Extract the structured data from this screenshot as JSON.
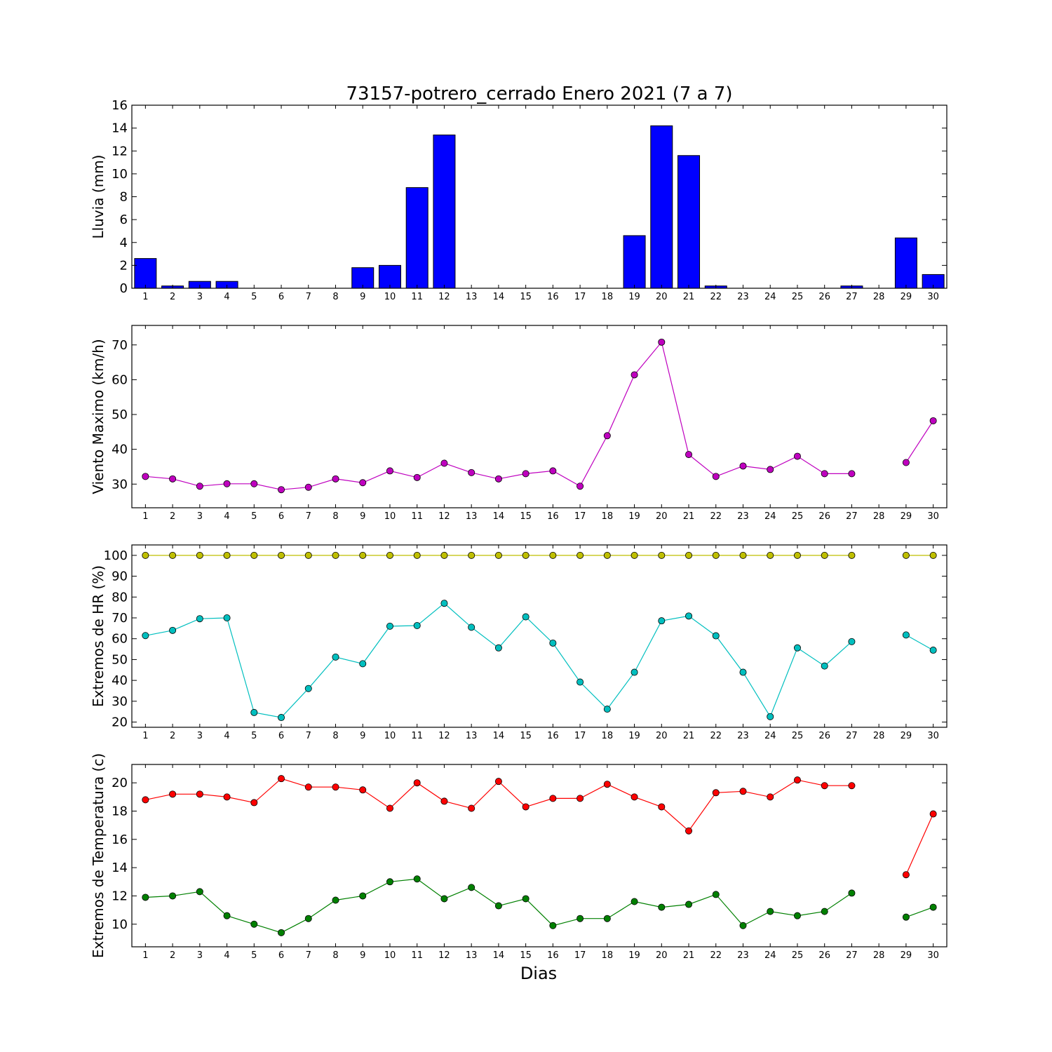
{
  "chart_data": [
    {
      "type": "bar",
      "title": "73157-potrero_cerrado Enero 2021  (7 a 7)",
      "ylabel": "Lluvia (mm)",
      "xlabel": "",
      "ylim": [
        0,
        16
      ],
      "yticks": [
        0,
        2,
        4,
        6,
        8,
        10,
        12,
        14,
        16
      ],
      "x": [
        1,
        2,
        3,
        4,
        5,
        6,
        7,
        8,
        9,
        10,
        11,
        12,
        13,
        14,
        15,
        16,
        17,
        18,
        19,
        20,
        21,
        22,
        23,
        24,
        25,
        26,
        27,
        28,
        29,
        30
      ],
      "series": [
        {
          "color": "#0000ff",
          "values": [
            2.6,
            0.2,
            0.6,
            0.6,
            0,
            0,
            0,
            0,
            1.8,
            2.0,
            8.8,
            13.4,
            0,
            0,
            0,
            0,
            0,
            0,
            4.6,
            14.2,
            11.6,
            0.2,
            0,
            0,
            0,
            0,
            0.2,
            null,
            4.4,
            1.2
          ]
        }
      ]
    },
    {
      "type": "line",
      "title": "",
      "ylabel": "Viento Maximo (km/h)",
      "xlabel": "",
      "ylim": [
        23.2,
        75.6
      ],
      "yticks": [
        30,
        40,
        50,
        60,
        70
      ],
      "x": [
        1,
        2,
        3,
        4,
        5,
        6,
        7,
        8,
        9,
        10,
        11,
        12,
        13,
        14,
        15,
        16,
        17,
        18,
        19,
        20,
        21,
        22,
        23,
        24,
        25,
        26,
        27,
        28,
        29,
        30
      ],
      "series": [
        {
          "color": "#bf00bf",
          "values": [
            32.2,
            31.5,
            29.4,
            30.1,
            30.1,
            28.4,
            29.1,
            31.5,
            30.4,
            33.8,
            31.9,
            36.0,
            33.3,
            31.5,
            33.0,
            33.8,
            29.4,
            43.9,
            61.4,
            70.8,
            38.5,
            32.2,
            35.2,
            34.2,
            38.0,
            33.0,
            33.0,
            null,
            36.2,
            48.2
          ]
        }
      ]
    },
    {
      "type": "line",
      "title": "",
      "ylabel": "Extremos de HR (%)",
      "xlabel": "",
      "ylim": [
        17.5,
        105
      ],
      "yticks": [
        20,
        30,
        40,
        50,
        60,
        70,
        80,
        90,
        100
      ],
      "x": [
        1,
        2,
        3,
        4,
        5,
        6,
        7,
        8,
        9,
        10,
        11,
        12,
        13,
        14,
        15,
        16,
        17,
        18,
        19,
        20,
        21,
        22,
        23,
        24,
        25,
        26,
        27,
        28,
        29,
        30
      ],
      "series": [
        {
          "color": "#bfbf00",
          "values": [
            100,
            100,
            100,
            100,
            100,
            100,
            100,
            100,
            100,
            100,
            100,
            100,
            100,
            100,
            100,
            100,
            100,
            100,
            100,
            100,
            100,
            100,
            100,
            100,
            100,
            100,
            100,
            null,
            100,
            100
          ]
        },
        {
          "color": "#00bfbf",
          "values": [
            61.5,
            64,
            69.6,
            70,
            24.6,
            22.2,
            36.1,
            51.2,
            48,
            66,
            66.3,
            77,
            65.5,
            55.6,
            70.5,
            57.9,
            39.2,
            26.2,
            43.9,
            68.6,
            70.9,
            61.4,
            43.9,
            22.6,
            55.6,
            46.9,
            58.6,
            null,
            61.8,
            54.5
          ]
        }
      ]
    },
    {
      "type": "line",
      "title": "",
      "ylabel": "Extremos de Temperatura (c)",
      "xlabel": "Dias",
      "ylim": [
        8.4,
        21.3
      ],
      "yticks": [
        10,
        12,
        14,
        16,
        18,
        20
      ],
      "x": [
        1,
        2,
        3,
        4,
        5,
        6,
        7,
        8,
        9,
        10,
        11,
        12,
        13,
        14,
        15,
        16,
        17,
        18,
        19,
        20,
        21,
        22,
        23,
        24,
        25,
        26,
        27,
        28,
        29,
        30
      ],
      "series": [
        {
          "color": "#ff0000",
          "values": [
            18.8,
            19.2,
            19.2,
            19.0,
            18.6,
            20.3,
            19.7,
            19.7,
            19.5,
            18.2,
            20.0,
            18.7,
            18.2,
            20.1,
            18.3,
            18.9,
            18.9,
            19.9,
            19.0,
            18.3,
            16.6,
            19.3,
            19.4,
            19.0,
            20.2,
            19.8,
            19.8,
            null,
            13.5,
            17.8
          ]
        },
        {
          "color": "#008000",
          "values": [
            11.9,
            12.0,
            12.3,
            10.6,
            10.0,
            9.4,
            10.4,
            11.7,
            12.0,
            13.0,
            13.2,
            11.8,
            12.6,
            11.3,
            11.8,
            9.9,
            10.4,
            10.4,
            11.6,
            11.2,
            11.4,
            12.1,
            9.9,
            10.9,
            10.6,
            10.9,
            12.2,
            null,
            10.5,
            11.2
          ]
        }
      ]
    }
  ]
}
